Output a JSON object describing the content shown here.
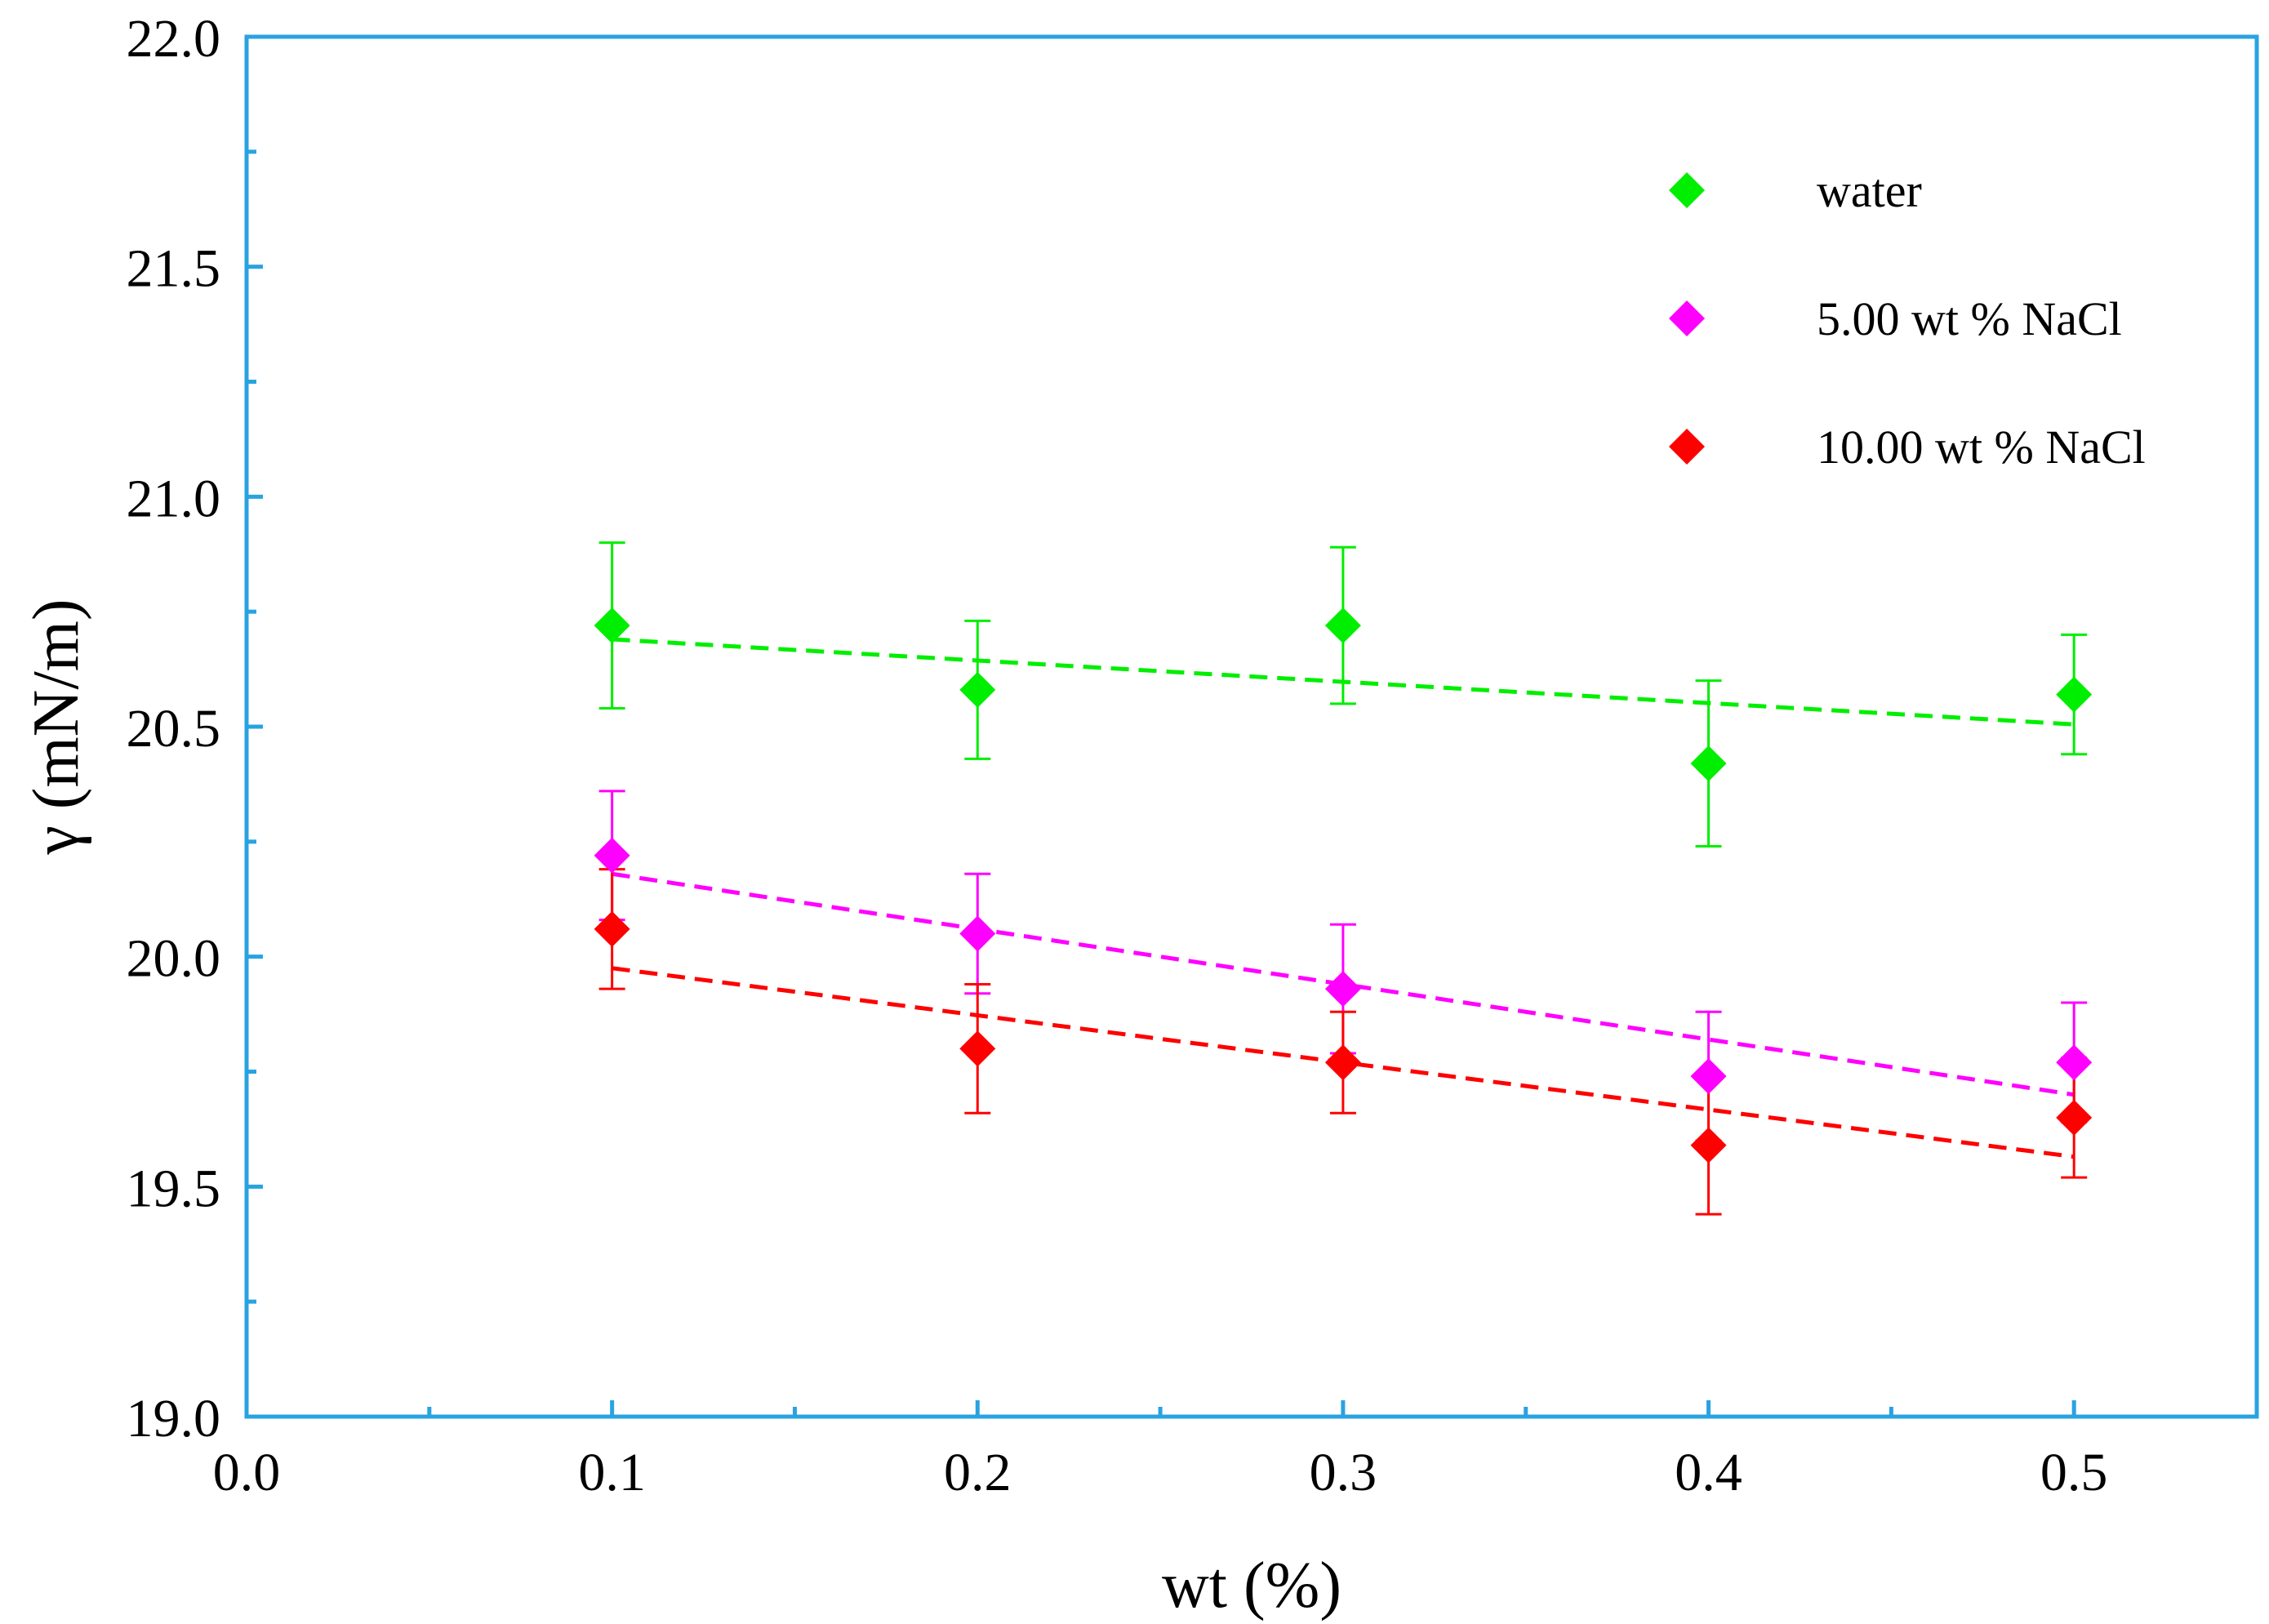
{
  "chart_data": {
    "type": "scatter",
    "title": "",
    "xlabel": "wt (%)",
    "ylabel": "γ (mN/m)",
    "xlim": [
      0.0,
      0.55
    ],
    "ylim": [
      19.0,
      22.0
    ],
    "x_ticks": [
      "0.0",
      "0.1",
      "0.2",
      "0.3",
      "0.4",
      "0.5"
    ],
    "y_ticks": [
      "19.0",
      "19.5",
      "20.0",
      "20.5",
      "21.0",
      "21.5",
      "22.0"
    ],
    "legend_position": "top-right",
    "x": [
      0.1,
      0.2,
      0.3,
      0.4,
      0.5
    ],
    "series": [
      {
        "name": "water",
        "color": "#00ee00",
        "values": [
          20.72,
          20.58,
          20.72,
          20.42,
          20.57
        ],
        "errors": [
          0.18,
          0.15,
          0.17,
          0.18,
          0.13
        ],
        "fit": [
          20.69,
          20.505
        ]
      },
      {
        "name": "5.00 wt % NaCl",
        "color": "#ff00ff",
        "values": [
          20.22,
          20.05,
          19.93,
          19.74,
          19.77
        ],
        "errors": [
          0.14,
          0.13,
          0.14,
          0.14,
          0.13
        ],
        "fit": [
          20.18,
          19.7
        ]
      },
      {
        "name": "10.00 wt % NaCl",
        "color": "#ff0000",
        "values": [
          20.06,
          19.8,
          19.77,
          19.59,
          19.65
        ],
        "errors": [
          0.13,
          0.14,
          0.11,
          0.15,
          0.13
        ],
        "fit": [
          19.975,
          19.565
        ]
      }
    ]
  }
}
